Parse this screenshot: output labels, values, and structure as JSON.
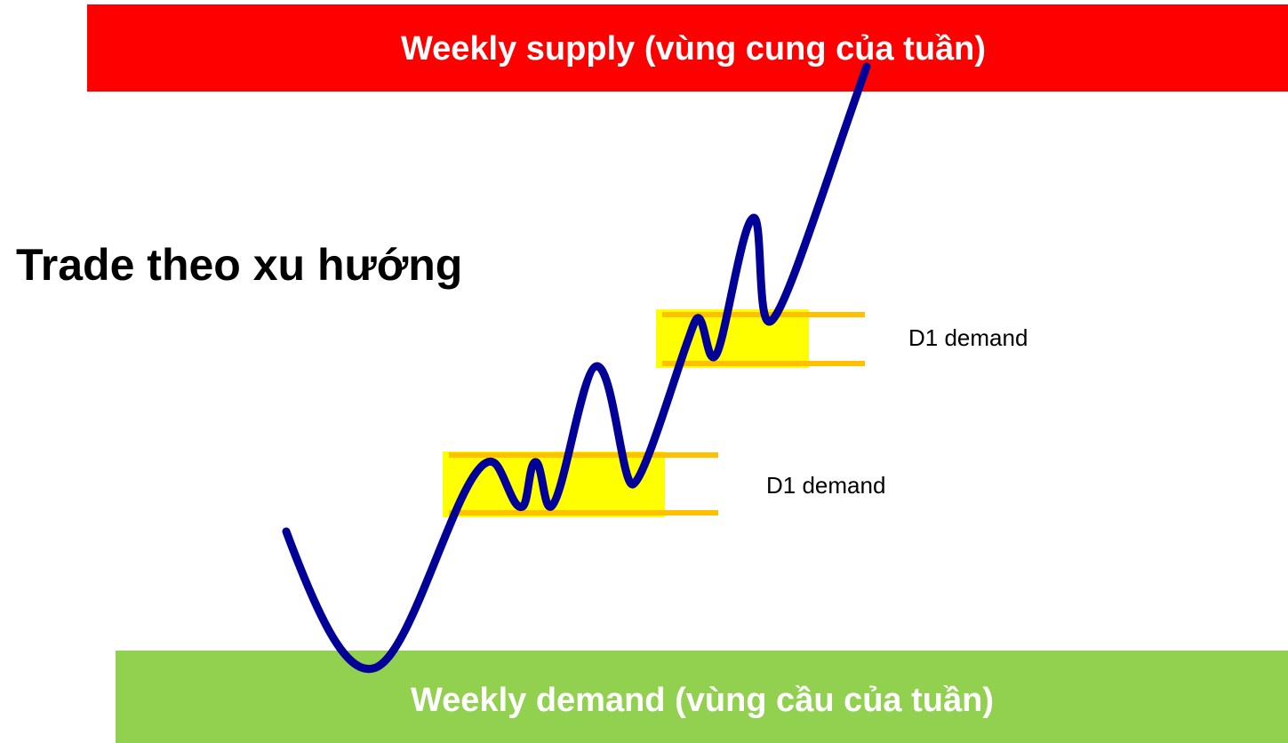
{
  "supply": {
    "label": "Weekly supply (vùng cung của tuần)"
  },
  "demand": {
    "label": "Weekly demand (vùng cầu của tuần)"
  },
  "title": "Trade theo xu hướng",
  "zones": [
    {
      "label": "D1 demand"
    },
    {
      "label": "D1 demand"
    }
  ]
}
